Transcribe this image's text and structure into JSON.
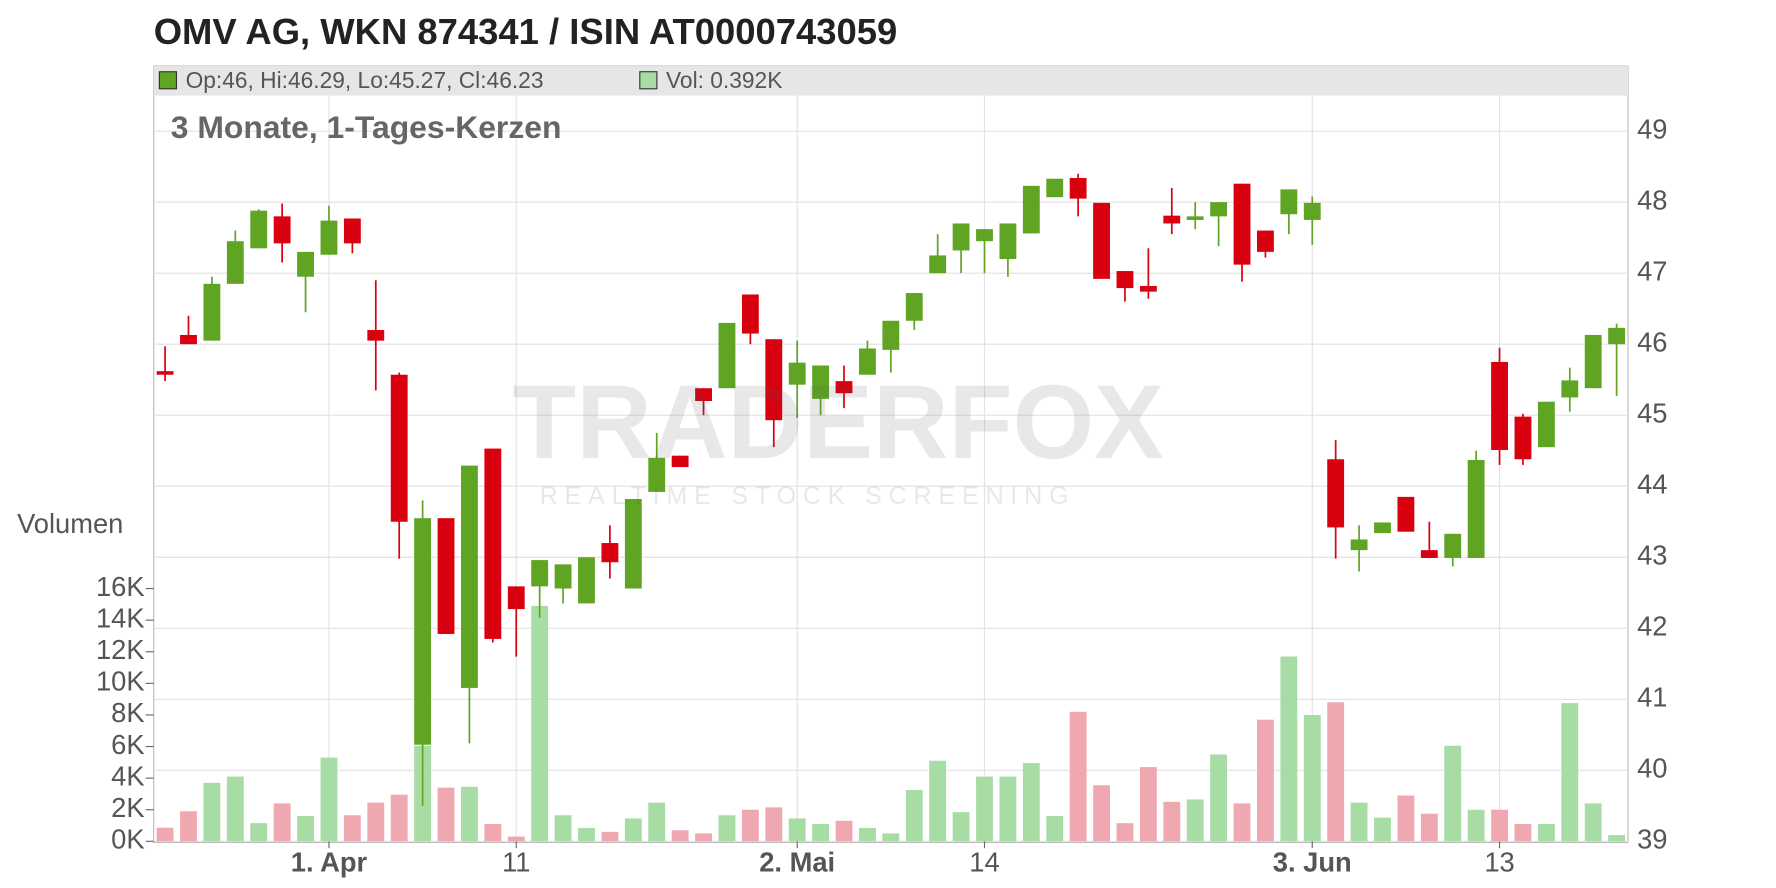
{
  "chart_data": {
    "type": "candlestick",
    "title": "OMV AG, WKN 874341 / ISIN AT0000743059",
    "subtitle": "3 Monate, 1-Tages-Kerzen",
    "legend": [
      "Op:46, Hi:46.29, Lo:45.27, Cl:46.23",
      "Vol: 0.392K"
    ],
    "watermark": {
      "title": "TRADERFOX",
      "tagline": "REALTIME STOCK SCREENING"
    },
    "categories": [
      null,
      null,
      null,
      null,
      null,
      null,
      null,
      "1. Apr",
      null,
      null,
      null,
      null,
      null,
      null,
      null,
      "11",
      null,
      null,
      null,
      null,
      null,
      null,
      null,
      null,
      null,
      null,
      null,
      "2. Mai",
      null,
      null,
      null,
      null,
      null,
      null,
      null,
      "14",
      null,
      null,
      null,
      null,
      null,
      null,
      null,
      null,
      null,
      null,
      null,
      null,
      null,
      "3. Jun",
      null,
      null,
      null,
      null,
      null,
      null,
      null,
      "13",
      null,
      null,
      null,
      null,
      null
    ],
    "open": [
      45.62,
      46.13,
      46.05,
      46.85,
      47.35,
      47.8,
      46.95,
      47.26,
      47.77,
      46.2,
      45.57,
      40.36,
      43.55,
      41.16,
      44.53,
      42.59,
      42.59,
      42.56,
      42.35,
      43.2,
      42.56,
      43.92,
      44.43,
      45.38,
      45.38,
      46.7,
      46.07,
      45.43,
      45.23,
      45.48,
      45.57,
      45.92,
      46.33,
      47.0,
      47.32,
      47.45,
      47.2,
      47.56,
      48.07,
      48.34,
      47.99,
      47.03,
      46.82,
      47.81,
      47.75,
      47.8,
      48.26,
      47.6,
      47.83,
      47.75,
      44.38,
      43.1,
      43.34,
      43.85,
      43.1,
      42.99,
      42.99,
      45.75,
      44.98,
      44.55,
      45.25,
      45.38,
      46
    ],
    "high": [
      45.97,
      46.4,
      46.95,
      47.6,
      47.9,
      47.98,
      47.3,
      47.95,
      47.77,
      46.9,
      45.6,
      43.8,
      43.55,
      44.29,
      44.53,
      42.59,
      42.96,
      42.9,
      43.0,
      43.45,
      43.82,
      44.75,
      44.43,
      45.38,
      46.3,
      46.7,
      46.07,
      46.05,
      45.7,
      45.7,
      46.05,
      46.33,
      46.72,
      47.55,
      47.7,
      47.62,
      47.7,
      48.23,
      48.33,
      48.4,
      47.99,
      47.03,
      47.35,
      48.2,
      48.0,
      48.0,
      48.26,
      47.6,
      48.18,
      48.08,
      44.65,
      43.45,
      43.49,
      43.85,
      43.5,
      43.33,
      44.5,
      45.95,
      45.02,
      45.19,
      45.67,
      46.13,
      46.29
    ],
    "low": [
      45.48,
      46.0,
      46.05,
      46.85,
      47.35,
      47.15,
      46.45,
      47.26,
      47.28,
      45.35,
      42.98,
      39.5,
      41.92,
      40.38,
      41.8,
      41.6,
      42.15,
      42.35,
      42.35,
      42.7,
      42.56,
      43.92,
      44.27,
      45.0,
      45.38,
      46.0,
      44.55,
      44.96,
      45.0,
      45.1,
      45.57,
      45.6,
      46.2,
      47.0,
      47.0,
      47.0,
      46.95,
      47.56,
      48.07,
      47.8,
      46.92,
      46.6,
      46.64,
      47.55,
      47.62,
      47.38,
      46.88,
      47.22,
      47.55,
      47.4,
      42.98,
      42.8,
      43.34,
      43.36,
      42.99,
      42.87,
      42.99,
      44.3,
      44.3,
      44.55,
      45.05,
      45.38,
      45.27
    ],
    "close": [
      45.57,
      46.0,
      46.85,
      47.45,
      47.88,
      47.42,
      47.3,
      47.74,
      47.42,
      46.05,
      43.5,
      43.55,
      41.92,
      44.29,
      41.85,
      42.27,
      42.96,
      42.9,
      43.0,
      42.93,
      43.82,
      44.4,
      44.27,
      45.2,
      46.3,
      46.15,
      44.93,
      45.74,
      45.7,
      45.31,
      45.94,
      46.33,
      46.72,
      47.25,
      47.7,
      47.62,
      47.7,
      48.23,
      48.33,
      48.05,
      46.92,
      46.79,
      46.74,
      47.7,
      47.8,
      48.0,
      47.12,
      47.3,
      48.18,
      47.99,
      43.42,
      43.25,
      43.49,
      43.36,
      42.99,
      43.33,
      44.37,
      44.51,
      44.38,
      45.19,
      45.49,
      46.13,
      46.23
    ],
    "up_color": "#5fa523",
    "down_color": "#d9000f",
    "ylim": [
      39,
      49.5
    ],
    "yticks": [
      39,
      40,
      41,
      42,
      43,
      44,
      45,
      46,
      47,
      48,
      49
    ],
    "grid": true,
    "volume": {
      "label": "Volumen",
      "values": [
        860,
        1900,
        3700,
        4100,
        1150,
        2400,
        1600,
        5300,
        1650,
        2450,
        2950,
        6050,
        3400,
        3450,
        1100,
        300,
        14900,
        1650,
        850,
        600,
        1450,
        2450,
        700,
        500,
        1650,
        2000,
        2150,
        1450,
        1100,
        1300,
        850,
        500,
        3250,
        5100,
        1850,
        4100,
        4100,
        4950,
        1600,
        8200,
        3550,
        1150,
        4700,
        2500,
        2650,
        5500,
        2400,
        7700,
        11700,
        8000,
        8800,
        2450,
        1500,
        2900,
        1750,
        6050,
        2000,
        2000,
        1100,
        1100,
        8750,
        2400,
        392
      ],
      "up_color": "#a8dca5",
      "down_color": "#f0a8b0",
      "ylim": [
        0,
        16000
      ],
      "yticks": [
        {
          "value": 0,
          "label": "0K"
        },
        {
          "value": 2000,
          "label": "2K"
        },
        {
          "value": 4000,
          "label": "4K"
        },
        {
          "value": 6000,
          "label": "6K"
        },
        {
          "value": 8000,
          "label": "8K"
        },
        {
          "value": 10000,
          "label": "10K"
        },
        {
          "value": 12000,
          "label": "12K"
        },
        {
          "value": 14000,
          "label": "14K"
        },
        {
          "value": 16000,
          "label": "16K"
        }
      ]
    }
  }
}
